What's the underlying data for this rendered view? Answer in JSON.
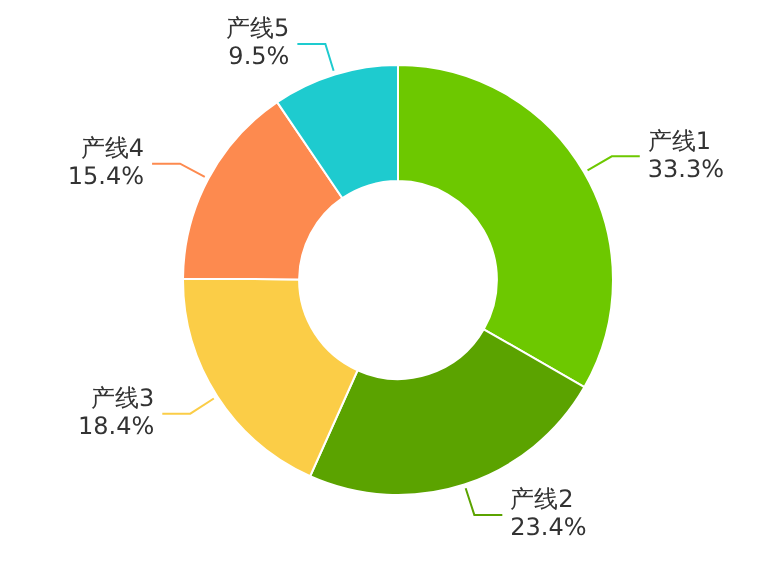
{
  "chart_data": {
    "type": "donut",
    "categories": [
      "产线1",
      "产线2",
      "产线3",
      "产线4",
      "产线5"
    ],
    "values": [
      33.3,
      23.4,
      18.4,
      15.4,
      9.5
    ],
    "value_labels": [
      "33.3%",
      "23.4%",
      "18.4%",
      "15.4%",
      "9.5%"
    ],
    "colors": [
      "#6dc800",
      "#5ba300",
      "#fbcd47",
      "#fd8a4f",
      "#1ecbcf"
    ],
    "legend": false
  }
}
